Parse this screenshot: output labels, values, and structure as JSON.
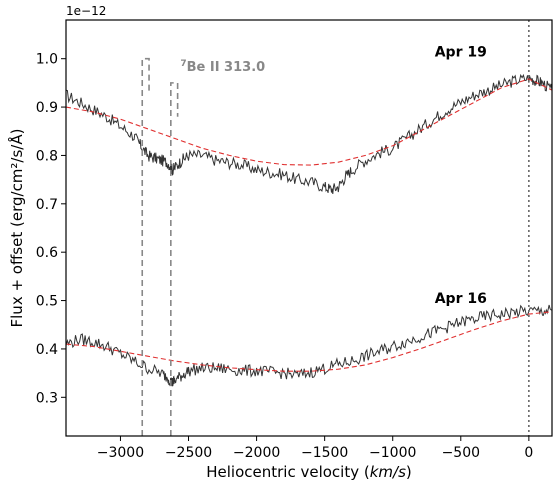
{
  "chart_data": {
    "type": "line",
    "title": "",
    "xlabel": "Heliocentric velocity (km/s)",
    "ylabel": "Flux + offset (erg/cm²/s/Å)",
    "y_offset_text": "1e−12",
    "xlim": [
      -3400,
      170
    ],
    "ylim": [
      0.22,
      1.08
    ],
    "x_ticks": [
      -3000,
      -2500,
      -2000,
      -1500,
      -1000,
      -500,
      0
    ],
    "x_tick_labels": [
      "−3000",
      "−2500",
      "−2000",
      "−1500",
      "−1000",
      "−500",
      "0"
    ],
    "y_ticks": [
      0.3,
      0.4,
      0.5,
      0.6,
      0.7,
      0.8,
      0.9,
      1.0
    ],
    "y_tick_labels": [
      "0.3",
      "0.4",
      "0.5",
      "0.6",
      "0.7",
      "0.8",
      "0.9",
      "1.0"
    ],
    "grid": false,
    "colors": {
      "spectrum": "#333333",
      "continuum": "#e03030",
      "marker": "#888888",
      "zero_line": "#666666"
    },
    "series": [
      {
        "label": "Apr 19",
        "role": "spectrum",
        "x": [
          -3400,
          -3300,
          -3200,
          -3100,
          -3000,
          -2900,
          -2850,
          -2800,
          -2750,
          -2700,
          -2650,
          -2620,
          -2600,
          -2550,
          -2500,
          -2400,
          -2300,
          -2200,
          -2100,
          -2000,
          -1900,
          -1800,
          -1700,
          -1600,
          -1500,
          -1450,
          -1400,
          -1350,
          -1300,
          -1200,
          -1100,
          -1000,
          -900,
          -800,
          -700,
          -600,
          -500,
          -400,
          -300,
          -200,
          -100,
          0,
          50,
          100,
          170
        ],
        "y": [
          0.925,
          0.91,
          0.895,
          0.88,
          0.86,
          0.84,
          0.82,
          0.8,
          0.795,
          0.79,
          0.785,
          0.77,
          0.775,
          0.79,
          0.8,
          0.8,
          0.79,
          0.785,
          0.78,
          0.77,
          0.765,
          0.76,
          0.75,
          0.745,
          0.735,
          0.73,
          0.735,
          0.755,
          0.77,
          0.79,
          0.805,
          0.815,
          0.835,
          0.855,
          0.875,
          0.895,
          0.91,
          0.925,
          0.935,
          0.945,
          0.955,
          0.96,
          0.955,
          0.95,
          0.935
        ]
      },
      {
        "label": "Apr 19 continuum",
        "role": "continuum",
        "x": [
          -3400,
          -3200,
          -3000,
          -2800,
          -2600,
          -2400,
          -2200,
          -2000,
          -1800,
          -1600,
          -1400,
          -1200,
          -1000,
          -800,
          -600,
          -400,
          -200,
          0,
          170
        ],
        "y": [
          0.9,
          0.89,
          0.875,
          0.855,
          0.835,
          0.815,
          0.8,
          0.788,
          0.781,
          0.78,
          0.786,
          0.8,
          0.82,
          0.85,
          0.88,
          0.91,
          0.94,
          0.958,
          0.935
        ]
      },
      {
        "label": "Apr 16",
        "role": "spectrum",
        "x": [
          -3400,
          -3300,
          -3200,
          -3100,
          -3000,
          -2900,
          -2800,
          -2700,
          -2650,
          -2620,
          -2600,
          -2550,
          -2500,
          -2400,
          -2300,
          -2200,
          -2100,
          -2000,
          -1900,
          -1800,
          -1700,
          -1600,
          -1500,
          -1400,
          -1300,
          -1200,
          -1100,
          -1000,
          -900,
          -800,
          -700,
          -600,
          -500,
          -400,
          -300,
          -200,
          -100,
          0,
          100,
          170
        ],
        "y": [
          0.41,
          0.42,
          0.415,
          0.405,
          0.39,
          0.375,
          0.36,
          0.35,
          0.34,
          0.33,
          0.335,
          0.345,
          0.355,
          0.36,
          0.36,
          0.358,
          0.355,
          0.355,
          0.352,
          0.35,
          0.345,
          0.352,
          0.36,
          0.368,
          0.375,
          0.385,
          0.395,
          0.405,
          0.415,
          0.425,
          0.435,
          0.445,
          0.455,
          0.462,
          0.468,
          0.472,
          0.476,
          0.478,
          0.478,
          0.48
        ]
      },
      {
        "label": "Apr 16 continuum",
        "role": "continuum",
        "x": [
          -3400,
          -3200,
          -3000,
          -2800,
          -2600,
          -2400,
          -2200,
          -2000,
          -1800,
          -1600,
          -1400,
          -1200,
          -1000,
          -800,
          -600,
          -400,
          -200,
          0,
          170
        ],
        "y": [
          0.41,
          0.405,
          0.395,
          0.385,
          0.375,
          0.367,
          0.361,
          0.357,
          0.354,
          0.354,
          0.358,
          0.367,
          0.382,
          0.4,
          0.42,
          0.44,
          0.458,
          0.472,
          0.477
        ]
      }
    ],
    "annotations": [
      {
        "text": "Apr 19",
        "x": -500,
        "y": 1.005
      },
      {
        "text": "Apr 16",
        "x": -500,
        "y": 0.495
      }
    ],
    "markers": [
      {
        "kind": "dashed_line",
        "x": -2840,
        "y_top": 1.0,
        "bracket_right": -2790,
        "bracket_bottom": 0.93
      },
      {
        "kind": "dashed_line",
        "x": -2630,
        "y_top": 0.95,
        "bracket_right": -2580,
        "bracket_bottom": 0.88
      },
      {
        "kind": "dotted_vertical",
        "x": 0
      }
    ],
    "line_label": {
      "superscript": "7",
      "text": "Be II 313.0",
      "x": -2560,
      "y": 0.975
    }
  }
}
